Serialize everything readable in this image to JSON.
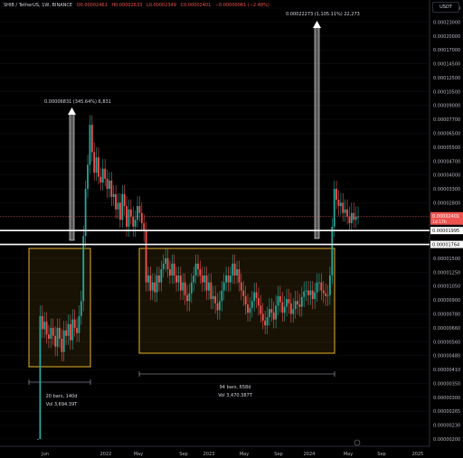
{
  "header": {
    "symbol": "SHIB / TetherUS, 1W, BINANCE",
    "open": "O0.00002461",
    "high": "H0.00002633",
    "low": "L0.00002349",
    "close": "C0.00002401",
    "change": "−0.00000061 (−2.48%)"
  },
  "currency_button": "USDT",
  "measurements": {
    "rise1": "0.00006831 (345.64%) 6,831",
    "rise2": "0.00022273 (1,105.11%) 22,273",
    "range1_bars": "20 bars, 140d",
    "range1_vol": "Vol 3,694.39T",
    "range2_bars": "94 bars, 658d",
    "range2_vol": "Vol 3,470.387T"
  },
  "price_tags": {
    "last": "0.00002401",
    "countdown": "1d 17h",
    "level1": "0.00001995",
    "level2": "0.00001764"
  },
  "chart_data": {
    "type": "candlestick",
    "y_axis_labels": [
      "0.00027000",
      "0.00023000",
      "0.00020000",
      "0.00017000",
      "0.00014500",
      "0.00012500",
      "0.00010500",
      "0.00009000",
      "0.00007700",
      "0.00006500",
      "0.00005500",
      "0.00004700",
      "0.00004000",
      "0.00003300",
      "0.00002800",
      "0.00002401",
      "0.00001995",
      "0.00001764",
      "0.00001500",
      "0.00001250",
      "0.00001050",
      "0.00000900",
      "0.00000780",
      "0.00000660",
      "0.00000560",
      "0.00000480",
      "0.00000410",
      "0.00000350",
      "0.00000300",
      "0.00000265",
      "0.00000230",
      "0.00000200"
    ],
    "x_axis_labels": [
      "Jun",
      "2022",
      "May",
      "Sep",
      "2023",
      "May",
      "Sep",
      "2024",
      "May",
      "Sep",
      "2025"
    ],
    "support_levels": [
      1.995e-05,
      1.764e-05
    ],
    "colors": {
      "up": "#26a69a",
      "down": "#ef5350",
      "box": "#e8b22c",
      "level": "#ffffff"
    },
    "candles_close": [
      1.5e-06,
      7.6e-06,
      6.5e-06,
      7.1e-06,
      6.1e-06,
      5.8e-06,
      6.6e-06,
      6e-06,
      5.3e-06,
      6.6e-06,
      5.8e-06,
      5e-06,
      6.4e-06,
      6e-06,
      6.9e-06,
      5.7e-06,
      7.3e-06,
      6.6e-06,
      6.2e-06,
      7.6e-06,
      8.9e-06,
      1.9e-05,
      3.3e-05,
      4.5e-05,
      7.2e-05,
      5.2e-05,
      4.1e-05,
      4.9e-05,
      3.9e-05,
      3.6e-05,
      4.3e-05,
      3.8e-05,
      3.3e-05,
      3.7e-05,
      3e-05,
      3.1e-05,
      2.6e-05,
      2.8e-05,
      2.3e-05,
      3.1e-05,
      2.7e-05,
      2.1e-05,
      2.6e-05,
      2.4e-05,
      2.1e-05,
      2.3e-05,
      2.7e-05,
      2.5e-05,
      2.2e-05,
      2e-05,
      1.1e-05,
      1.2e-05,
      1e-05,
      1.1e-05,
      9.8e-06,
      1.2e-05,
      1.1e-05,
      1.3e-05,
      1.4e-05,
      1.5e-05,
      1.3e-05,
      1.2e-05,
      1.4e-05,
      1.2e-05,
      1.1e-05,
      1.2e-05,
      1e-05,
      1.1e-05,
      9.5e-06,
      8.9e-06,
      9.7e-06,
      1.1e-05,
      1.2e-05,
      1.4e-05,
      1.3e-05,
      1.2e-05,
      1.1e-05,
      1.2e-05,
      1e-05,
      1.1e-05,
      9.1e-06,
      9.4e-06,
      8.7e-06,
      8.1e-06,
      8.9e-06,
      1e-05,
      1.1e-05,
      1.2e-05,
      1.1e-05,
      1.2e-05,
      1.4e-05,
      1.2e-05,
      1.3e-05,
      1.1e-05,
      1e-05,
      9.4e-06,
      8.6e-06,
      7.9e-06,
      8.3e-06,
      8.9e-06,
      9.8e-06,
      9.2e-06,
      8.5e-06,
      7.8e-06,
      7.2e-06,
      6.8e-06,
      7.5e-06,
      8.2e-06,
      7.9e-06,
      7.3e-06,
      8.5e-06,
      9.4e-06,
      8.8e-06,
      7.9e-06,
      8.4e-06,
      9.1e-06,
      8.7e-06,
      7.8e-06,
      8.2e-06,
      8.9e-06,
      8.6e-06,
      8.4e-06,
      9.3e-06,
      9.9e-06,
      1e-05,
      9.5e-06,
      1e-05,
      9.1e-06,
      9.8e-06,
      1.1e-05,
      1.1e-05,
      1e-05,
      9.7e-06,
      9.4e-06,
      9.5e-06,
      1.2e-05,
      2.1e-05,
      3.3e-05,
      2.9e-05,
      2.7e-05,
      2.8e-05,
      2.5e-05,
      2.6e-05,
      2.4e-05,
      2.2e-05,
      2.5e-05,
      2.3e-05,
      2.4e-05,
      2.4e-05
    ]
  }
}
